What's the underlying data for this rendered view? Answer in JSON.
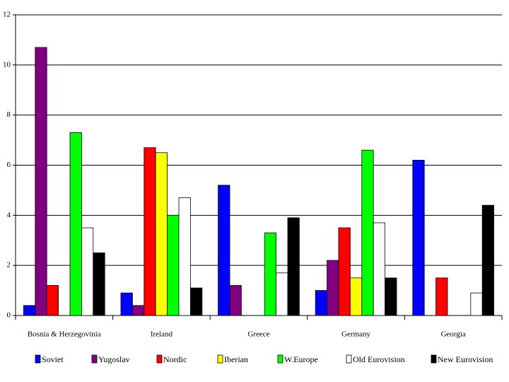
{
  "chart_data": {
    "type": "bar",
    "categories": [
      "Bosnia & Herzegovinia",
      "Ireland",
      "Greece",
      "Germany",
      "Georgia"
    ],
    "series": [
      {
        "name": "Soviet",
        "color": "#0000ff",
        "values": [
          0.4,
          0.9,
          5.2,
          1.0,
          6.2
        ]
      },
      {
        "name": "Yugoslav",
        "color": "#800080",
        "values": [
          10.7,
          0.4,
          1.2,
          2.2,
          0
        ]
      },
      {
        "name": "Nordic",
        "color": "#ff0000",
        "values": [
          1.2,
          6.7,
          0,
          3.5,
          1.5
        ]
      },
      {
        "name": "Iberian",
        "color": "#ffff00",
        "values": [
          0,
          6.5,
          0,
          1.5,
          0
        ]
      },
      {
        "name": "W.Europe",
        "color": "#00ff00",
        "values": [
          7.3,
          4.0,
          3.3,
          6.6,
          0
        ]
      },
      {
        "name": "Old Eurovision",
        "color": "#ffffff",
        "values": [
          3.5,
          4.7,
          1.7,
          3.7,
          0.9
        ]
      },
      {
        "name": "New Eurovision",
        "color": "#000000",
        "values": [
          2.5,
          1.1,
          3.9,
          1.5,
          4.4
        ]
      }
    ],
    "ylim": [
      0,
      12
    ],
    "yticks": [
      0,
      2,
      4,
      6,
      8,
      10,
      12
    ],
    "grid": true,
    "legend": "bottom"
  }
}
